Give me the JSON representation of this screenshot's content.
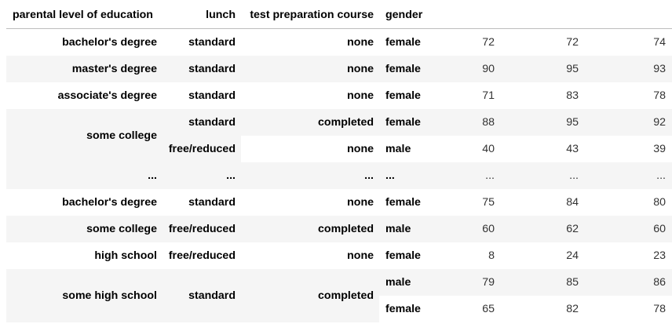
{
  "columns": {
    "index_headers": [
      "parental level of education",
      "lunch",
      "test preparation course",
      "gender"
    ],
    "value_headers": [
      "",
      "",
      ""
    ]
  },
  "rows": [
    {
      "edu": "bachelor's degree",
      "lunch": "standard",
      "prep": "none",
      "gender": "female",
      "values": [
        "72",
        "72",
        "74"
      ]
    },
    {
      "edu": "master's degree",
      "lunch": "standard",
      "prep": "none",
      "gender": "female",
      "values": [
        "90",
        "95",
        "93"
      ]
    },
    {
      "edu": "associate's degree",
      "lunch": "standard",
      "prep": "none",
      "gender": "female",
      "values": [
        "71",
        "83",
        "78"
      ]
    },
    {
      "edu": "some college",
      "lunch": "standard",
      "prep": "completed",
      "gender": "female",
      "values": [
        "88",
        "95",
        "92"
      ]
    },
    {
      "edu": "",
      "lunch": "free/reduced",
      "prep": "none",
      "gender": "male",
      "values": [
        "40",
        "43",
        "39"
      ]
    },
    {
      "edu": "...",
      "lunch": "...",
      "prep": "...",
      "gender": "...",
      "values": [
        "...",
        "...",
        "..."
      ]
    },
    {
      "edu": "bachelor's degree",
      "lunch": "standard",
      "prep": "none",
      "gender": "female",
      "values": [
        "75",
        "84",
        "80"
      ]
    },
    {
      "edu": "some college",
      "lunch": "free/reduced",
      "prep": "completed",
      "gender": "male",
      "values": [
        "60",
        "62",
        "60"
      ]
    },
    {
      "edu": "high school",
      "lunch": "free/reduced",
      "prep": "none",
      "gender": "female",
      "values": [
        "8",
        "24",
        "23"
      ]
    },
    {
      "edu": "some high school",
      "lunch": "standard",
      "prep": "completed",
      "gender": "male",
      "values": [
        "79",
        "85",
        "86"
      ]
    },
    {
      "edu": "",
      "lunch": "",
      "prep": "",
      "gender": "female",
      "values": [
        "65",
        "82",
        "78"
      ]
    }
  ],
  "colors": {
    "stripe": "#f5f5f5",
    "rule": "#bdbdbd"
  }
}
